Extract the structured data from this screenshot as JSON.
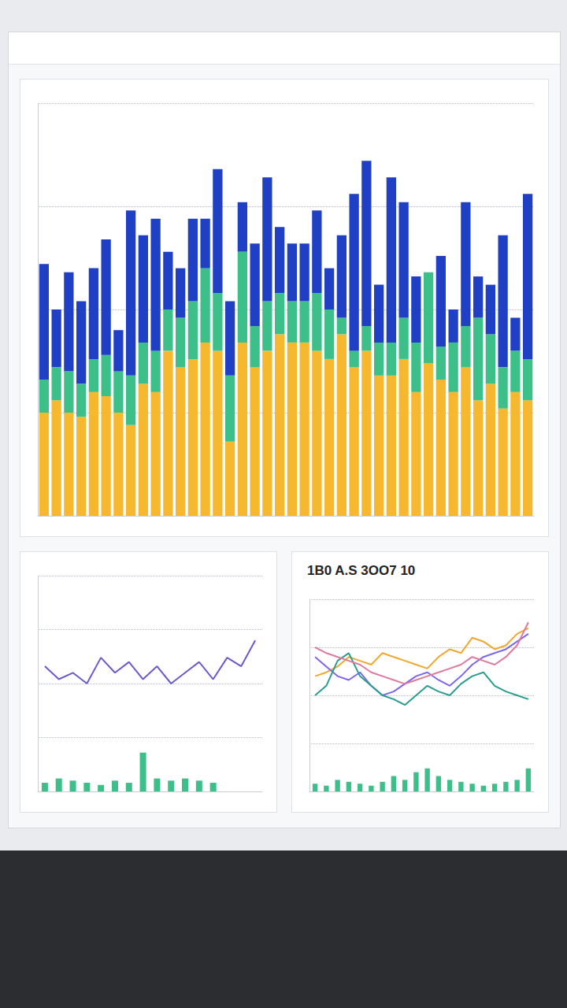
{
  "chart_data": [
    {
      "type": "bar",
      "stacked": true,
      "grid": true,
      "tick_labels": false,
      "categories": [
        null,
        null,
        null,
        null,
        null,
        null,
        null,
        null,
        null,
        null,
        null,
        null,
        null,
        null,
        null,
        null,
        null,
        null,
        null,
        null,
        null,
        null,
        null,
        null,
        null,
        null,
        null,
        null,
        null,
        null,
        null,
        null,
        null,
        null,
        null,
        null,
        null,
        null,
        null,
        null
      ],
      "ylim": [
        0,
        100
      ],
      "yticks": [
        0,
        25,
        50,
        75,
        100
      ],
      "series": [
        {
          "color": "#f5b82e",
          "values": [
            25,
            28,
            25,
            24,
            30,
            29,
            25,
            22,
            32,
            30,
            40,
            36,
            38,
            42,
            40,
            18,
            42,
            36,
            40,
            44,
            42,
            42,
            40,
            38,
            44,
            36,
            40,
            34,
            34,
            38,
            30,
            37,
            33,
            30,
            36,
            28,
            32,
            26,
            30,
            28
          ]
        },
        {
          "color": "#3dbf8a",
          "values": [
            8,
            8,
            10,
            8,
            8,
            10,
            10,
            12,
            10,
            10,
            10,
            12,
            14,
            18,
            14,
            16,
            22,
            10,
            12,
            10,
            10,
            10,
            14,
            12,
            4,
            4,
            6,
            8,
            8,
            10,
            12,
            22,
            8,
            12,
            10,
            20,
            12,
            10,
            10,
            10
          ]
        },
        {
          "color": "#1f3fc4",
          "values": [
            28,
            14,
            24,
            20,
            22,
            28,
            10,
            40,
            26,
            32,
            14,
            12,
            20,
            12,
            30,
            18,
            12,
            20,
            30,
            16,
            14,
            14,
            20,
            10,
            20,
            38,
            40,
            14,
            40,
            28,
            16,
            0,
            22,
            8,
            30,
            10,
            12,
            32,
            8,
            40
          ]
        }
      ]
    },
    {
      "type": "line",
      "grid": true,
      "tick_labels": false,
      "categories": [
        null,
        null,
        null,
        null,
        null,
        null,
        null,
        null,
        null,
        null,
        null,
        null,
        null,
        null,
        null,
        null
      ],
      "ylim": [
        0,
        100
      ],
      "yticks": [
        0,
        25,
        50,
        75,
        100
      ],
      "series": [
        {
          "type": "line",
          "color": "#6a5acd",
          "values": [
            58,
            52,
            55,
            50,
            62,
            55,
            60,
            52,
            58,
            50,
            55,
            60,
            52,
            62,
            58,
            70
          ]
        },
        {
          "type": "bar",
          "color": "#3dbf8a",
          "values": [
            4,
            6,
            5,
            4,
            3,
            5,
            4,
            18,
            6,
            5,
            6,
            5,
            4,
            0,
            0,
            0
          ]
        }
      ]
    },
    {
      "type": "line",
      "title": "1B0 A.S 3OO7 10",
      "grid": true,
      "tick_labels": false,
      "categories": [
        null,
        null,
        null,
        null,
        null,
        null,
        null,
        null,
        null,
        null,
        null,
        null,
        null,
        null,
        null,
        null,
        null,
        null,
        null,
        null
      ],
      "ylim": [
        0,
        100
      ],
      "yticks": [
        0,
        25,
        50,
        75,
        100
      ],
      "series": [
        {
          "type": "line",
          "color": "#f0a830",
          "values": [
            60,
            62,
            65,
            70,
            68,
            66,
            72,
            70,
            68,
            66,
            64,
            70,
            74,
            72,
            80,
            78,
            74,
            76,
            82,
            85
          ]
        },
        {
          "type": "line",
          "color": "#7b68ee",
          "values": [
            70,
            65,
            60,
            58,
            62,
            55,
            50,
            52,
            56,
            60,
            62,
            58,
            55,
            60,
            66,
            70,
            72,
            74,
            78,
            82
          ]
        },
        {
          "type": "line",
          "color": "#2a9d8f",
          "values": [
            50,
            55,
            68,
            72,
            60,
            55,
            50,
            48,
            45,
            50,
            55,
            52,
            50,
            56,
            60,
            62,
            55,
            52,
            50,
            48
          ]
        },
        {
          "type": "line",
          "color": "#e07a9a",
          "values": [
            75,
            72,
            70,
            68,
            66,
            62,
            60,
            58,
            56,
            58,
            60,
            62,
            64,
            66,
            70,
            68,
            66,
            70,
            76,
            88
          ]
        },
        {
          "type": "bar",
          "color": "#3dbf8a",
          "values": [
            4,
            3,
            6,
            5,
            4,
            3,
            5,
            8,
            6,
            10,
            12,
            8,
            6,
            5,
            4,
            3,
            4,
            5,
            6,
            12
          ]
        }
      ]
    }
  ]
}
